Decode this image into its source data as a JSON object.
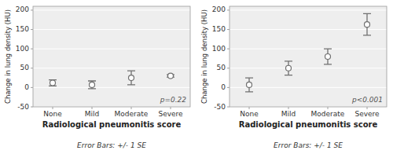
{
  "chart_data": [
    {
      "type": "errorbar",
      "categories": [
        "None",
        "Mild",
        "Moderate",
        "Severe"
      ],
      "values": [
        12,
        7,
        25,
        30
      ],
      "errors": [
        8,
        10,
        18,
        3
      ],
      "ylabel": "Change in lung density (HU)",
      "xlabel": "Radiological pneumonitis score",
      "annotations": [
        "p=0.22"
      ],
      "caption": "Error Bars: +/- 1 SE",
      "ylim": [
        -50,
        210
      ],
      "yticks": [
        -50,
        0,
        50,
        100,
        150,
        200
      ],
      "color": "#707070",
      "marker": "circle"
    },
    {
      "type": "errorbar",
      "categories": [
        "None",
        "Mild",
        "Moderate",
        "Severe"
      ],
      "values": [
        7,
        50,
        80,
        163
      ],
      "errors": [
        18,
        18,
        20,
        28
      ],
      "ylabel": "Change in lung density (HU)",
      "xlabel": "Radiological pneumonitis score",
      "annotations": [
        "p<0.001"
      ],
      "caption": "Error Bars: +/- 1 SE",
      "ylim": [
        -50,
        210
      ],
      "yticks": [
        -50,
        0,
        50,
        100,
        150,
        200
      ],
      "color": "#707070",
      "marker": "circle"
    }
  ]
}
